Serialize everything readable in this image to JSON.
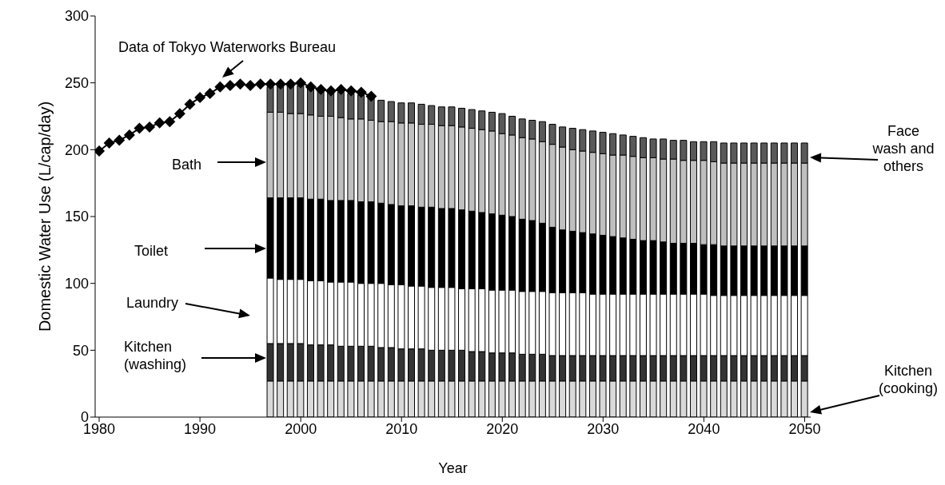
{
  "chart_data": {
    "type": "bar",
    "stacked": true,
    "xlabel": "Year",
    "ylabel": "Domestic Water Use (L/cap/day)",
    "x": [
      1997,
      1998,
      1999,
      2000,
      2001,
      2002,
      2003,
      2004,
      2005,
      2006,
      2007,
      2008,
      2009,
      2010,
      2011,
      2012,
      2013,
      2014,
      2015,
      2016,
      2017,
      2018,
      2019,
      2020,
      2021,
      2022,
      2023,
      2024,
      2025,
      2026,
      2027,
      2028,
      2029,
      2030,
      2031,
      2032,
      2033,
      2034,
      2035,
      2036,
      2037,
      2038,
      2039,
      2040,
      2041,
      2042,
      2043,
      2044,
      2045,
      2046,
      2047,
      2048,
      2049,
      2050
    ],
    "xlim": [
      1979.6,
      2050.6
    ],
    "xticks": [
      1980,
      1990,
      2000,
      2010,
      2020,
      2030,
      2040,
      2050
    ],
    "ylim": [
      0,
      300
    ],
    "yticks": [
      0,
      50,
      100,
      150,
      200,
      250,
      300
    ],
    "legend": false,
    "annotations": [
      "Data of Tokyo Waterworks Bureau",
      "Bath",
      "Toilet",
      "Laundry",
      "Kitchen (washing)",
      "Face wash and others",
      "Kitchen (cooking)"
    ],
    "series": [
      {
        "color": "#d9d9d9",
        "values": [
          27,
          27,
          27,
          27,
          27,
          27,
          27,
          27,
          27,
          27,
          27,
          27,
          27,
          27,
          27,
          27,
          27,
          27,
          27,
          27,
          27,
          27,
          27,
          27,
          27,
          27,
          27,
          27,
          27,
          27,
          27,
          27,
          27,
          27,
          27,
          27,
          27,
          27,
          27,
          27,
          27,
          27,
          27,
          27,
          27,
          27,
          27,
          27,
          27,
          27,
          27,
          27,
          27,
          27
        ]
      },
      {
        "color": "#333333",
        "values": [
          28,
          28,
          28,
          28,
          27,
          27,
          27,
          26,
          26,
          26,
          26,
          25,
          25,
          24,
          24,
          24,
          23,
          23,
          23,
          23,
          22,
          22,
          21,
          21,
          21,
          20,
          20,
          20,
          19,
          19,
          19,
          19,
          19,
          19,
          19,
          19,
          19,
          19,
          19,
          19,
          19,
          19,
          19,
          19,
          19,
          19,
          19,
          19,
          19,
          19,
          19,
          19,
          19,
          19
        ]
      },
      {
        "color": "#ffffff",
        "values": [
          49,
          48,
          48,
          48,
          48,
          48,
          47,
          48,
          48,
          47,
          47,
          48,
          47,
          48,
          47,
          47,
          47,
          47,
          47,
          46,
          47,
          47,
          47,
          47,
          47,
          47,
          47,
          47,
          47,
          47,
          47,
          47,
          46,
          46,
          46,
          46,
          46,
          46,
          46,
          46,
          46,
          46,
          46,
          46,
          45,
          45,
          45,
          45,
          45,
          45,
          45,
          45,
          45,
          45
        ]
      },
      {
        "color": "#000000",
        "values": [
          60,
          61,
          61,
          61,
          61,
          61,
          61,
          61,
          61,
          61,
          61,
          60,
          60,
          59,
          60,
          59,
          60,
          59,
          59,
          59,
          58,
          57,
          57,
          56,
          55,
          54,
          53,
          51,
          49,
          47,
          46,
          45,
          45,
          44,
          43,
          42,
          41,
          40,
          40,
          39,
          38,
          38,
          38,
          37,
          38,
          37,
          37,
          37,
          37,
          37,
          37,
          37,
          37,
          37
        ]
      },
      {
        "color": "#bfbfbf",
        "values": [
          64,
          64,
          63,
          63,
          63,
          62,
          63,
          62,
          61,
          62,
          61,
          61,
          62,
          62,
          62,
          62,
          62,
          62,
          62,
          62,
          62,
          62,
          62,
          61,
          61,
          61,
          61,
          61,
          62,
          62,
          61,
          61,
          61,
          61,
          61,
          62,
          62,
          62,
          62,
          62,
          63,
          62,
          62,
          63,
          62,
          62,
          62,
          62,
          62,
          62,
          62,
          62,
          62,
          62
        ]
      },
      {
        "color": "#595959",
        "values": [
          19,
          20,
          21,
          21,
          21,
          21,
          19,
          19,
          19,
          18,
          18,
          16,
          15,
          15,
          15,
          15,
          14,
          14,
          14,
          14,
          14,
          14,
          14,
          15,
          14,
          14,
          14,
          15,
          15,
          15,
          16,
          16,
          16,
          16,
          16,
          15,
          15,
          15,
          14,
          15,
          14,
          15,
          14,
          14,
          15,
          15,
          15,
          15,
          15,
          15,
          15,
          15,
          15,
          15
        ]
      },
      {
        "type": "line",
        "color": "#000000",
        "marker": "diamond",
        "line_style": "solid",
        "x": [
          1980,
          1981,
          1982,
          1983,
          1984,
          1985,
          1986,
          1987,
          1988,
          1989,
          1990,
          1991,
          1992,
          1993,
          1994,
          1995,
          1996,
          1997,
          1998,
          1999,
          2000,
          2001,
          2002,
          2003,
          2004,
          2005,
          2006,
          2007
        ],
        "values": [
          199,
          205,
          207,
          211,
          216,
          217,
          220,
          221,
          227,
          234,
          239,
          242,
          247,
          248,
          249,
          248,
          249,
          249,
          249,
          249,
          250,
          247,
          245,
          244,
          245,
          244,
          243,
          240
        ]
      }
    ]
  }
}
